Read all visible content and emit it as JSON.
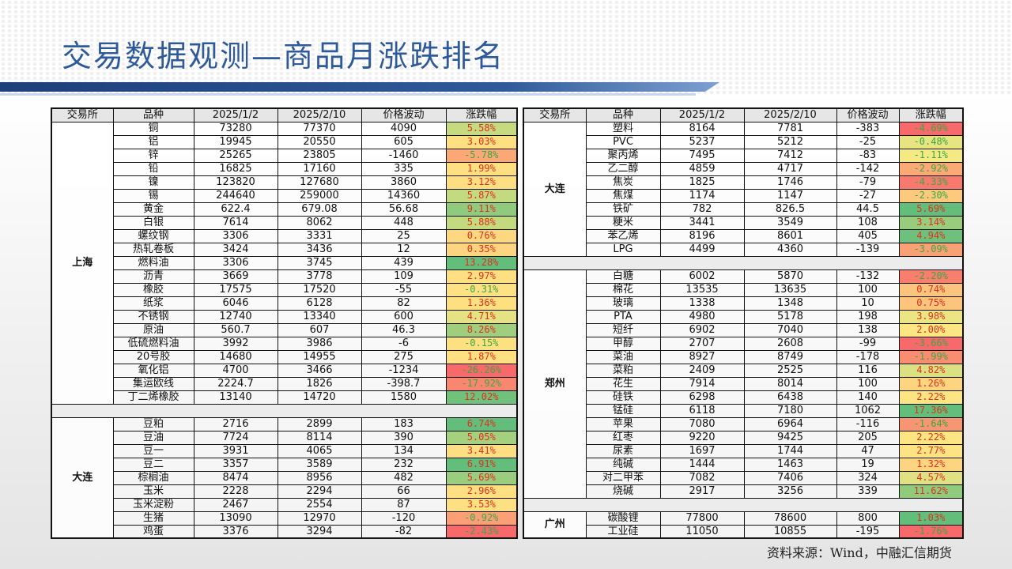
{
  "title": "交易数据观测—商品月涨跌排名",
  "source": "资料来源：Wind，中融汇信期货",
  "headers": [
    "交易所",
    "品种",
    "2025/1/2",
    "2025/2/10",
    "价格波动",
    "涨跌幅"
  ],
  "colors": {
    "positive_text": "#e0301e",
    "negative_text": "#3aa845",
    "title": "#2e5a9a"
  },
  "left_table": [
    {
      "exchange": "上海",
      "rows": [
        {
          "name": "铜",
          "v1": "73280",
          "v2": "77370",
          "chg": "4090",
          "pct": "5.58%",
          "bg": "#c6da80"
        },
        {
          "name": "铝",
          "v1": "19945",
          "v2": "20550",
          "chg": "605",
          "pct": "3.03%",
          "bg": "#fedf82"
        },
        {
          "name": "锌",
          "v1": "25265",
          "v2": "23805",
          "chg": "-1460",
          "pct": "-5.78%",
          "bg": "#fba876"
        },
        {
          "name": "铅",
          "v1": "16825",
          "v2": "17160",
          "chg": "335",
          "pct": "1.99%",
          "bg": "#fee082"
        },
        {
          "name": "镍",
          "v1": "123820",
          "v2": "127680",
          "chg": "3860",
          "pct": "3.12%",
          "bg": "#fede82"
        },
        {
          "name": "锡",
          "v1": "244640",
          "v2": "259000",
          "chg": "14360",
          "pct": "5.87%",
          "bg": "#c3da80"
        },
        {
          "name": "黄金",
          "v1": "622.4",
          "v2": "679.08",
          "chg": "56.68",
          "pct": "9.11%",
          "bg": "#8fca7d"
        },
        {
          "name": "白银",
          "v1": "7614",
          "v2": "8062",
          "chg": "448",
          "pct": "5.88%",
          "bg": "#c3da80"
        },
        {
          "name": "螺纹钢",
          "v1": "3306",
          "v2": "3331",
          "chg": "25",
          "pct": "0.76%",
          "bg": "#fdd880"
        },
        {
          "name": "热轧卷板",
          "v1": "3424",
          "v2": "3436",
          "chg": "12",
          "pct": "0.35%",
          "bg": "#fdd480"
        },
        {
          "name": "燃料油",
          "v1": "3306",
          "v2": "3745",
          "chg": "439",
          "pct": "13.28%",
          "bg": "#63be7b"
        },
        {
          "name": "沥青",
          "v1": "3669",
          "v2": "3778",
          "chg": "109",
          "pct": "2.97%",
          "bg": "#fee082"
        },
        {
          "name": "橡胶",
          "v1": "17575",
          "v2": "17520",
          "chg": "-55",
          "pct": "-0.31%",
          "bg": "#fde182"
        },
        {
          "name": "纸浆",
          "v1": "6046",
          "v2": "6128",
          "chg": "82",
          "pct": "1.36%",
          "bg": "#fee081"
        },
        {
          "name": "不锈钢",
          "v1": "12740",
          "v2": "13340",
          "chg": "600",
          "pct": "4.71%",
          "bg": "#e4e282"
        },
        {
          "name": "原油",
          "v1": "560.7",
          "v2": "607",
          "chg": "46.3",
          "pct": "8.26%",
          "bg": "#9fcf7e"
        },
        {
          "name": "低硫燃料油",
          "v1": "3992",
          "v2": "3986",
          "chg": "-6",
          "pct": "-0.15%",
          "bg": "#fde080"
        },
        {
          "name": "20号胶",
          "v1": "14680",
          "v2": "14955",
          "chg": "275",
          "pct": "1.87%",
          "bg": "#fee082"
        },
        {
          "name": "氧化铝",
          "v1": "4700",
          "v2": "3466",
          "chg": "-1234",
          "pct": "-26.26%",
          "bg": "#f8696b"
        },
        {
          "name": "集运欧线",
          "v1": "2224.7",
          "v2": "1826",
          "chg": "-398.7",
          "pct": "-17.92%",
          "bg": "#f9876f"
        },
        {
          "name": "丁二烯橡胶",
          "v1": "13140",
          "v2": "14720",
          "chg": "1580",
          "pct": "12.02%",
          "bg": "#6fc17b"
        }
      ]
    },
    {
      "exchange": "大连",
      "rows": [
        {
          "name": "豆粕",
          "v1": "2716",
          "v2": "2899",
          "chg": "183",
          "pct": "6.74%",
          "bg": "#63be7b"
        },
        {
          "name": "豆油",
          "v1": "7724",
          "v2": "8114",
          "chg": "390",
          "pct": "5.05%",
          "bg": "#a5d17e"
        },
        {
          "name": "豆一",
          "v1": "3931",
          "v2": "4065",
          "chg": "134",
          "pct": "3.41%",
          "bg": "#fede82"
        },
        {
          "name": "豆二",
          "v1": "3357",
          "v2": "3589",
          "chg": "232",
          "pct": "6.91%",
          "bg": "#63be7b"
        },
        {
          "name": "棕榈油",
          "v1": "8474",
          "v2": "8956",
          "chg": "482",
          "pct": "5.69%",
          "bg": "#9bcd7e"
        },
        {
          "name": "玉米",
          "v1": "2228",
          "v2": "2294",
          "chg": "66",
          "pct": "2.96%",
          "bg": "#fee082"
        },
        {
          "name": "玉米淀粉",
          "v1": "2467",
          "v2": "2554",
          "chg": "87",
          "pct": "3.53%",
          "bg": "#fee082"
        },
        {
          "name": "生猪",
          "v1": "13090",
          "v2": "12970",
          "chg": "-120",
          "pct": "-0.92%",
          "bg": "#fba076"
        },
        {
          "name": "鸡蛋",
          "v1": "3376",
          "v2": "3294",
          "chg": "-82",
          "pct": "-2.43%",
          "bg": "#f8696b"
        }
      ]
    }
  ],
  "right_table": [
    {
      "exchange": "大连",
      "rows": [
        {
          "name": "塑料",
          "v1": "8164",
          "v2": "7781",
          "chg": "-383",
          "pct": "-4.69%",
          "bg": "#f8696b"
        },
        {
          "name": "PVC",
          "v1": "5237",
          "v2": "5212",
          "chg": "-25",
          "pct": "-0.48%",
          "bg": "#e7e482"
        },
        {
          "name": "聚丙烯",
          "v1": "7495",
          "v2": "7412",
          "chg": "-83",
          "pct": "-1.11%",
          "bg": "#f5e984"
        },
        {
          "name": "乙二醇",
          "v1": "4859",
          "v2": "4717",
          "chg": "-142",
          "pct": "-2.92%",
          "bg": "#fbaa77"
        },
        {
          "name": "焦炭",
          "v1": "1825",
          "v2": "1746",
          "chg": "-79",
          "pct": "-4.33%",
          "bg": "#f87a6e"
        },
        {
          "name": "焦煤",
          "v1": "1174",
          "v2": "1147",
          "chg": "-27",
          "pct": "-2.30%",
          "bg": "#fdc97d"
        },
        {
          "name": "铁矿",
          "v1": "782",
          "v2": "826.5",
          "chg": "44.5",
          "pct": "5.69%",
          "bg": "#63be7b"
        },
        {
          "name": "粳米",
          "v1": "3441",
          "v2": "3549",
          "chg": "108",
          "pct": "3.14%",
          "bg": "#98cd7e"
        },
        {
          "name": "苯乙烯",
          "v1": "8196",
          "v2": "8601",
          "chg": "405",
          "pct": "4.94%",
          "bg": "#6ec17c"
        },
        {
          "name": "LPG",
          "v1": "4499",
          "v2": "4360",
          "chg": "-139",
          "pct": "-3.09%",
          "bg": "#faa075"
        }
      ]
    },
    {
      "exchange": "郑州",
      "rows": [
        {
          "name": "白糖",
          "v1": "6002",
          "v2": "5870",
          "chg": "-132",
          "pct": "-2.20%",
          "bg": "#f87e6e"
        },
        {
          "name": "棉花",
          "v1": "13535",
          "v2": "13635",
          "chg": "100",
          "pct": "0.74%",
          "bg": "#fdc47d"
        },
        {
          "name": "玻璃",
          "v1": "1338",
          "v2": "1348",
          "chg": "10",
          "pct": "0.75%",
          "bg": "#fdc47d"
        },
        {
          "name": "PTA",
          "v1": "4980",
          "v2": "5178",
          "chg": "198",
          "pct": "3.98%",
          "bg": "#ebe583"
        },
        {
          "name": "短纤",
          "v1": "6902",
          "v2": "7040",
          "chg": "138",
          "pct": "2.00%",
          "bg": "#fee683"
        },
        {
          "name": "甲醇",
          "v1": "2707",
          "v2": "2608",
          "chg": "-99",
          "pct": "-3.66%",
          "bg": "#f8696b"
        },
        {
          "name": "菜油",
          "v1": "8927",
          "v2": "8749",
          "chg": "-178",
          "pct": "-1.99%",
          "bg": "#f98d71"
        },
        {
          "name": "菜粕",
          "v1": "2409",
          "v2": "2525",
          "chg": "116",
          "pct": "4.82%",
          "bg": "#dbe081"
        },
        {
          "name": "花生",
          "v1": "7914",
          "v2": "8014",
          "chg": "100",
          "pct": "1.26%",
          "bg": "#fdd580"
        },
        {
          "name": "硅铁",
          "v1": "6298",
          "v2": "6438",
          "chg": "140",
          "pct": "2.22%",
          "bg": "#fee583"
        },
        {
          "name": "锰硅",
          "v1": "6118",
          "v2": "7180",
          "chg": "1062",
          "pct": "17.36%",
          "bg": "#63be7b"
        },
        {
          "name": "苹果",
          "v1": "7080",
          "v2": "6964",
          "chg": "-116",
          "pct": "-1.64%",
          "bg": "#f99672"
        },
        {
          "name": "红枣",
          "v1": "9220",
          "v2": "9425",
          "chg": "205",
          "pct": "2.22%",
          "bg": "#fee583"
        },
        {
          "name": "尿素",
          "v1": "1697",
          "v2": "1744",
          "chg": "47",
          "pct": "2.77%",
          "bg": "#fee382"
        },
        {
          "name": "纯碱",
          "v1": "1444",
          "v2": "1463",
          "chg": "19",
          "pct": "1.32%",
          "bg": "#fdd580"
        },
        {
          "name": "对二甲苯",
          "v1": "7082",
          "v2": "7406",
          "chg": "324",
          "pct": "4.57%",
          "bg": "#e0e182"
        },
        {
          "name": "烧碱",
          "v1": "2917",
          "v2": "3256",
          "chg": "339",
          "pct": "11.62%",
          "bg": "#8fca7d"
        }
      ]
    },
    {
      "exchange": "广州",
      "rows": [
        {
          "name": "碳酸锂",
          "v1": "77800",
          "v2": "78600",
          "chg": "800",
          "pct": "1.03%",
          "bg": "#63be7b"
        },
        {
          "name": "工业硅",
          "v1": "11050",
          "v2": "10855",
          "chg": "-195",
          "pct": "-1.76%",
          "bg": "#f8696b"
        }
      ]
    }
  ]
}
